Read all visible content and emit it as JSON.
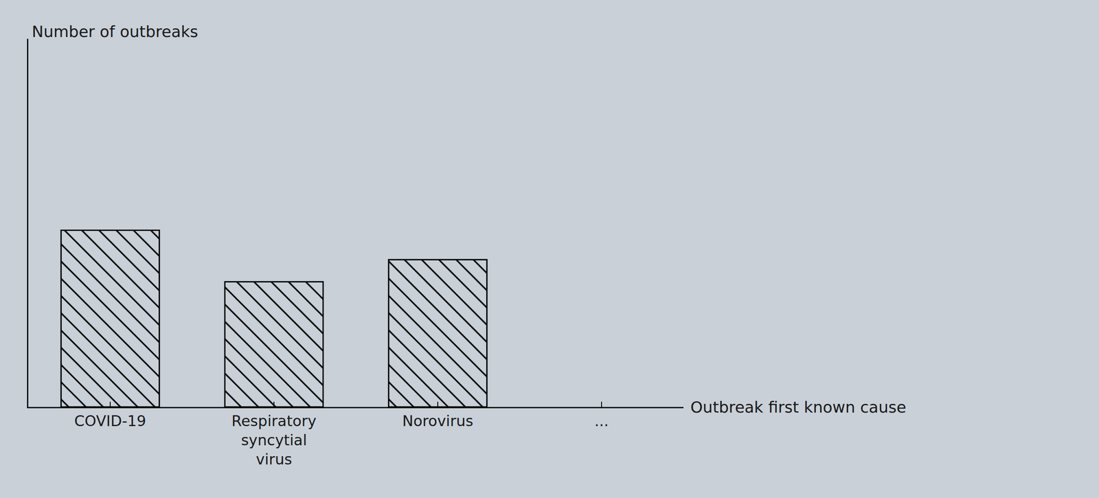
{
  "chart_data": {
    "type": "bar",
    "x_label": "Outbreak first known cause",
    "y_label": "Number of outbreaks",
    "categories": [
      "COVID-19",
      "Respiratory syncytial virus",
      "Norovirus",
      "..."
    ],
    "values": [
      4.8,
      3.4,
      4.0,
      null
    ],
    "color": "#000000",
    "ylim": [
      0,
      10
    ],
    "grid": false,
    "tick_labels": "x"
  }
}
